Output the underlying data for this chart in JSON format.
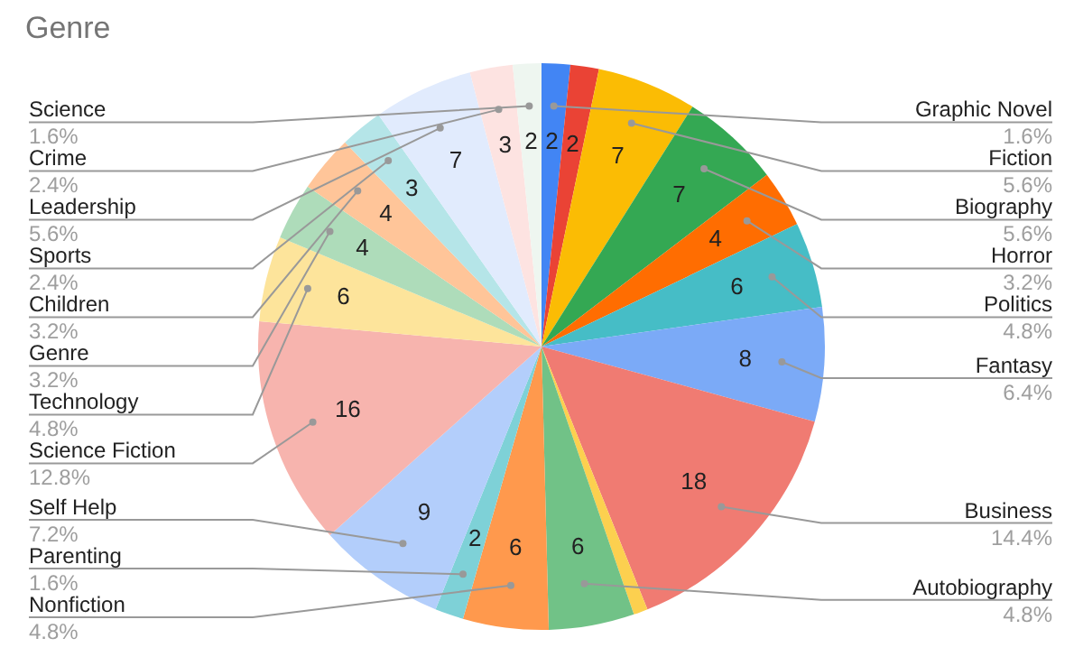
{
  "chart_data": {
    "type": "pie",
    "title": "Genre",
    "categories": [
      "Graphic Novel",
      null,
      "Fiction",
      "Biography",
      "Horror",
      "Politics",
      "Fantasy",
      "Business",
      null,
      "Autobiography",
      "Nonfiction",
      "Parenting",
      "Self Help",
      "Science Fiction",
      "Technology",
      "Genre",
      "Children",
      "Sports",
      "Leadership",
      "Crime",
      "Science"
    ],
    "values": [
      2,
      2,
      7,
      7,
      4,
      6,
      8,
      18,
      1,
      6,
      6,
      2,
      9,
      16,
      6,
      4,
      4,
      3,
      7,
      3,
      2
    ],
    "colors": [
      "#4285f4",
      "#ea4335",
      "#fbbc04",
      "#34a853",
      "#ff6d01",
      "#46bdc6",
      "#7baaf7",
      "#f07b72",
      "#fcd04f",
      "#71c287",
      "#ff994d",
      "#7ed1d7",
      "#b3cefb",
      "#f7b4ae",
      "#fde49b",
      "#aedcba",
      "#ffc599",
      "#b5e5e8",
      "#e1ebfd",
      "#fde3e1",
      "#eef6f0"
    ],
    "value_labels": [
      "2",
      "2",
      "7",
      "7",
      "4",
      "6",
      "8",
      "18",
      null,
      "6",
      "6",
      "2",
      "9",
      "16",
      "6",
      "4",
      "4",
      "3",
      "7",
      "3",
      "2"
    ],
    "annotations": [
      "1.6%",
      "5.6%",
      "5.6%",
      "3.2%",
      "4.8%",
      "6.4%",
      "14.4%",
      "4.8%",
      "4.8%",
      "1.6%",
      "7.2%",
      "12.8%",
      "4.8%",
      "3.2%",
      "3.2%",
      "2.4%",
      "5.6%",
      "2.4%",
      "1.6%"
    ]
  }
}
